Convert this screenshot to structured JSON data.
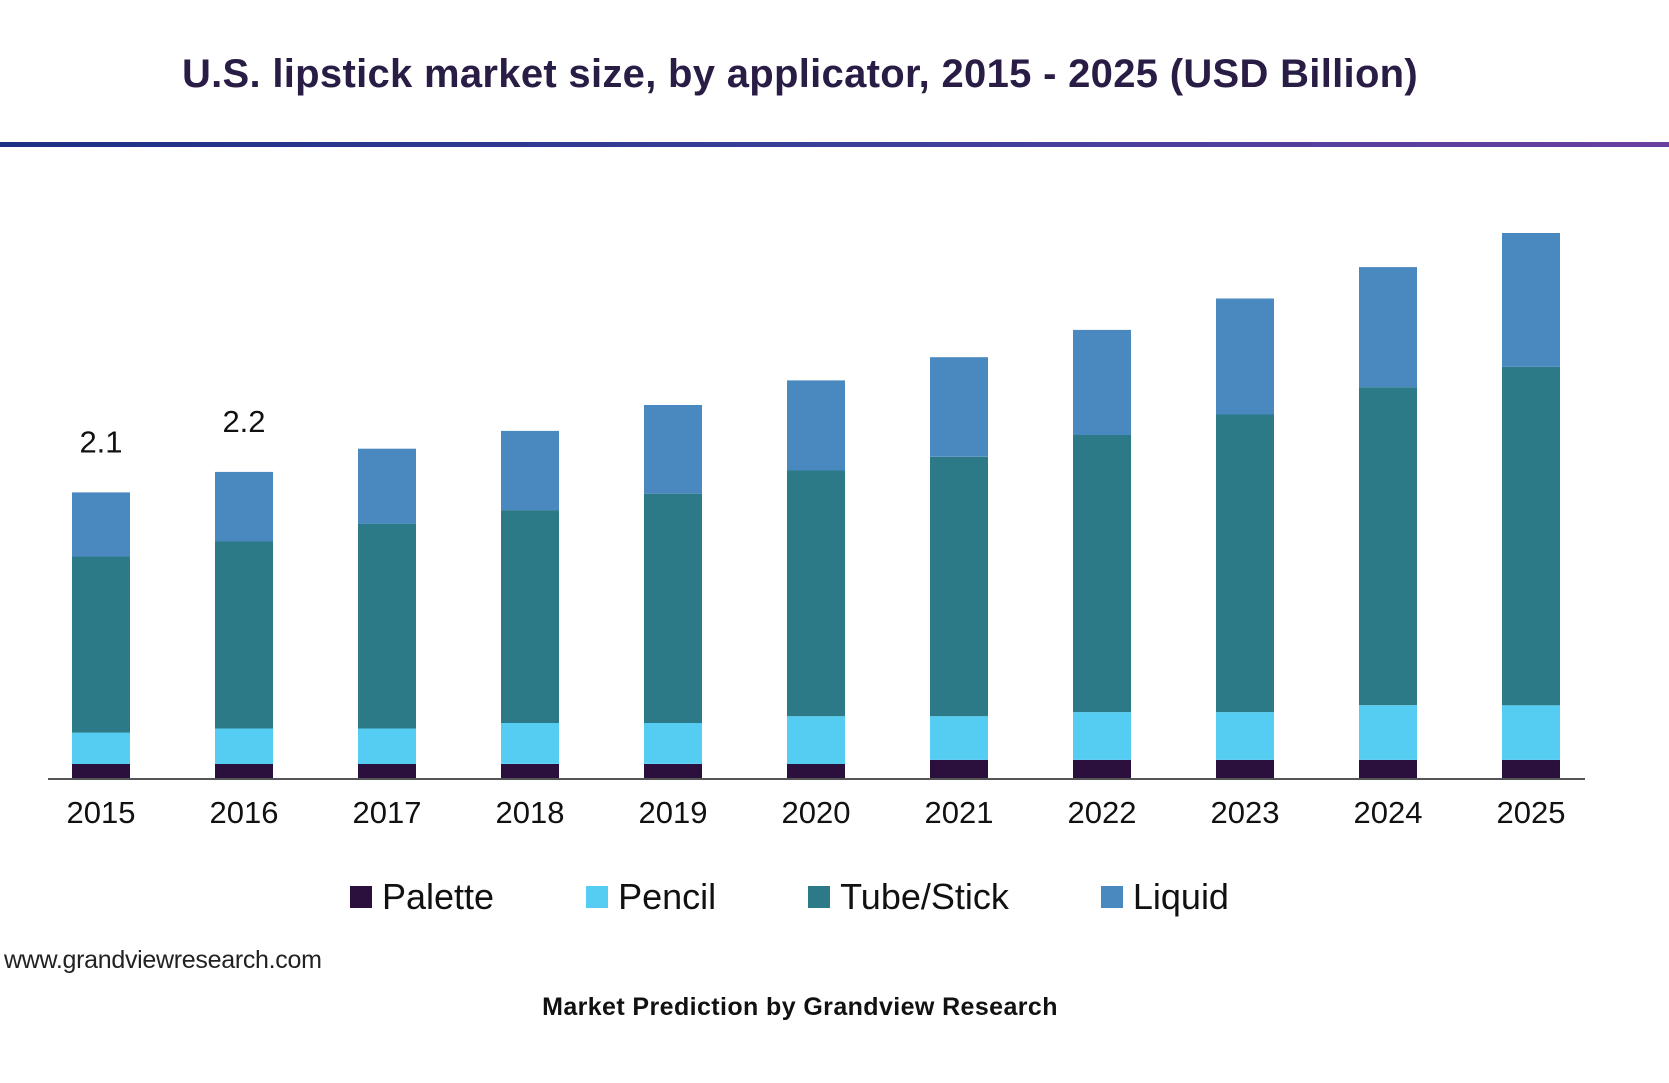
{
  "chart_data": {
    "type": "bar",
    "stacked": true,
    "title": "U.S. lipstick market size, by applicator, 2015 - 2025 (USD Billion)",
    "xlabel": "",
    "ylabel": "",
    "ylim": [
      0,
      4.0
    ],
    "grid": false,
    "legend_position": "bottom",
    "categories": [
      "2015",
      "2016",
      "2017",
      "2018",
      "2019",
      "2020",
      "2021",
      "2022",
      "2023",
      "2024",
      "2025"
    ],
    "series": [
      {
        "name": "Palette",
        "color": "#2b0f3d",
        "values": [
          0.11,
          0.11,
          0.11,
          0.11,
          0.11,
          0.11,
          0.14,
          0.14,
          0.14,
          0.14,
          0.14
        ]
      },
      {
        "name": "Pencil",
        "color": "#55cdf2",
        "values": [
          0.23,
          0.26,
          0.26,
          0.3,
          0.3,
          0.35,
          0.32,
          0.35,
          0.35,
          0.4,
          0.4
        ]
      },
      {
        "name": "Tube/Stick",
        "color": "#2c7a87",
        "values": [
          1.29,
          1.37,
          1.5,
          1.56,
          1.68,
          1.8,
          1.9,
          2.03,
          2.18,
          2.33,
          2.48
        ]
      },
      {
        "name": "Liquid",
        "color": "#4a88c0",
        "values": [
          0.47,
          0.51,
          0.55,
          0.58,
          0.65,
          0.66,
          0.73,
          0.77,
          0.85,
          0.88,
          0.98
        ]
      }
    ],
    "data_labels": [
      {
        "category": "2015",
        "text": "2.1"
      },
      {
        "category": "2016",
        "text": "2.2"
      }
    ]
  },
  "source_text": "www.grandviewresearch.com",
  "caption": "Market Prediction by Grandview Research",
  "colors": {
    "title": "#2a1d45",
    "axis": "#555555",
    "rule_start": "#1e2f86",
    "rule_end": "#6a3fa0"
  }
}
